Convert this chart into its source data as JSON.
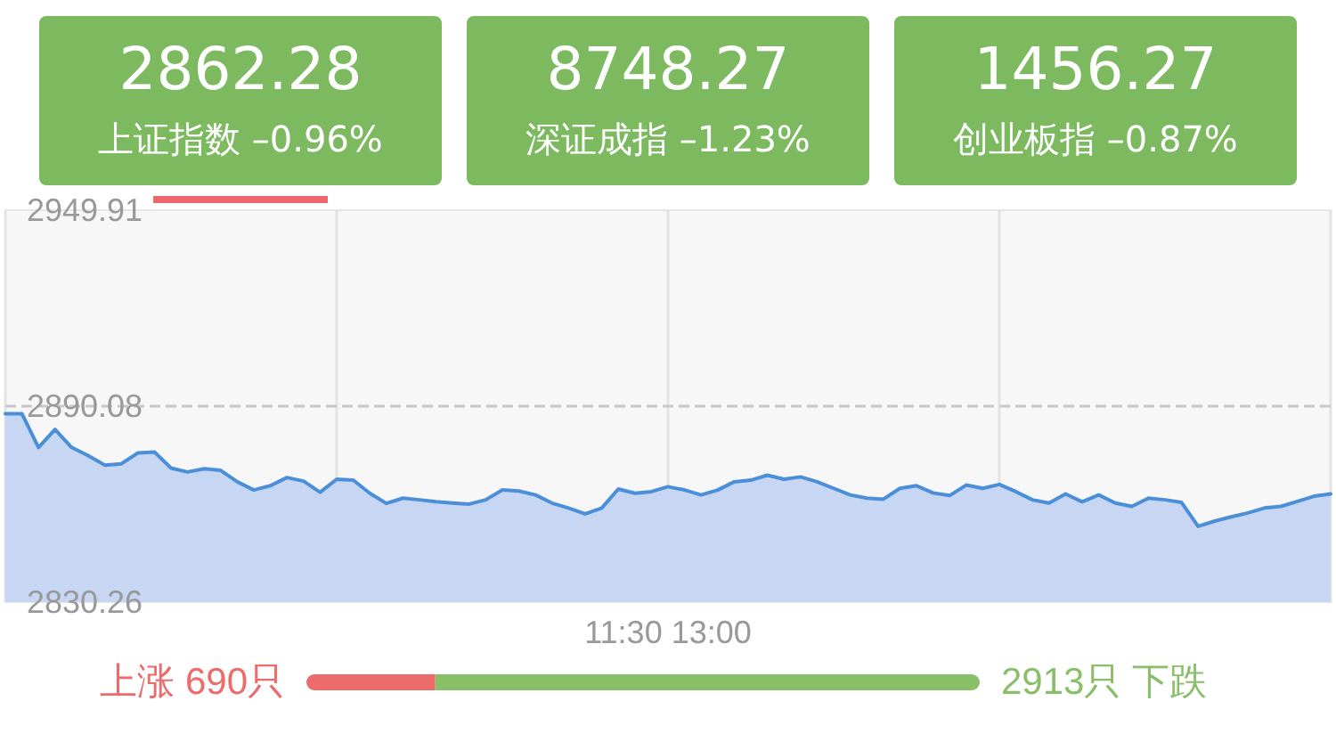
{
  "chart_data": [
    {
      "type": "other",
      "annotations": [
        "2862.28",
        "上证指数 –0.96%",
        "8748.27",
        "深证成指 –1.23%",
        "1456.27",
        "创业板指 –0.87%"
      ]
    },
    {
      "type": "area",
      "color": "#4a8fd8",
      "marker": "none",
      "grid": "x",
      "categories": [
        null,
        null,
        null,
        null,
        null,
        null,
        null,
        null,
        null,
        null,
        null,
        null,
        null,
        null,
        null,
        null,
        null,
        null,
        null,
        null,
        null,
        null,
        null,
        null,
        null,
        null,
        null,
        null,
        null,
        null,
        null,
        null,
        null,
        null,
        null,
        null,
        null,
        null,
        null,
        null,
        "11:30 13:00",
        null,
        null,
        null,
        null,
        null,
        null,
        null,
        null,
        null,
        null,
        null,
        null,
        null,
        null,
        null,
        null,
        null,
        null,
        null,
        null,
        null,
        null,
        null,
        null,
        null,
        null,
        null,
        null,
        null,
        null,
        null,
        null,
        null,
        null,
        null,
        null,
        null,
        null,
        null,
        null
      ],
      "values": [
        2887.8,
        2887.8,
        2877.5,
        2883.0,
        2877.5,
        2875.0,
        2872.1,
        2872.5,
        2875.8,
        2876.1,
        2871.2,
        2870.0,
        2871.0,
        2870.5,
        2867.0,
        2864.5,
        2865.8,
        2868.3,
        2867.2,
        2863.8,
        2867.8,
        2867.5,
        2863.5,
        2860.4,
        2862.0,
        2861.5,
        2860.9,
        2860.5,
        2860.2,
        2861.5,
        2864.5,
        2864.2,
        2863.0,
        2860.5,
        2859.0,
        2857.2,
        2859.0,
        2864.8,
        2863.5,
        2864.0,
        2865.5,
        2864.5,
        2863.0,
        2864.5,
        2867.0,
        2867.5,
        2869.0,
        2867.8,
        2868.5,
        2867.0,
        2865.0,
        2863.0,
        2862.0,
        2861.7,
        2865.0,
        2865.8,
        2863.6,
        2862.8,
        2866.0,
        2865.0,
        2866.2,
        2864.0,
        2861.5,
        2860.5,
        2863.3,
        2860.9,
        2863.0,
        2860.5,
        2859.5,
        2862.0,
        2861.5,
        2860.7,
        2853.4,
        2855.0,
        2856.3,
        2857.5,
        2859.0,
        2859.5,
        2861.0,
        2862.6,
        2863.3
      ],
      "ylim": [
        2830.26,
        2949.91
      ],
      "yticks": [
        2830.26,
        2890.08,
        2949.91
      ],
      "ref_lines": [
        {
          "axis": "y",
          "value": 2890.08,
          "line_style": "dashed"
        }
      ]
    },
    {
      "type": "bar",
      "orientation": "horizontal",
      "stacked": true,
      "tick_labels": false,
      "categories": [
        null
      ],
      "series": [
        {
          "color": "#ec6b6b",
          "values": [
            690
          ],
          "value_labels": [
            "上涨 690只"
          ]
        },
        {
          "color": "#8abf6a",
          "values": [
            2913
          ],
          "value_labels": [
            "2913只 下跌"
          ]
        }
      ]
    }
  ]
}
